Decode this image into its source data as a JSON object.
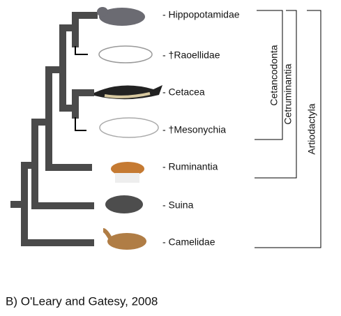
{
  "taxa": [
    "- Hippopotamidae",
    "- †Raoellidae",
    "- Cetacea",
    "- †Mesonychia",
    "- Ruminantia",
    "- Suina",
    "- Camelidae"
  ],
  "clades": [
    "Cetancodonta",
    "Cetruminantia",
    "Artiodactyla"
  ],
  "caption": "B)  O'Leary and Gatesy, 2008"
}
